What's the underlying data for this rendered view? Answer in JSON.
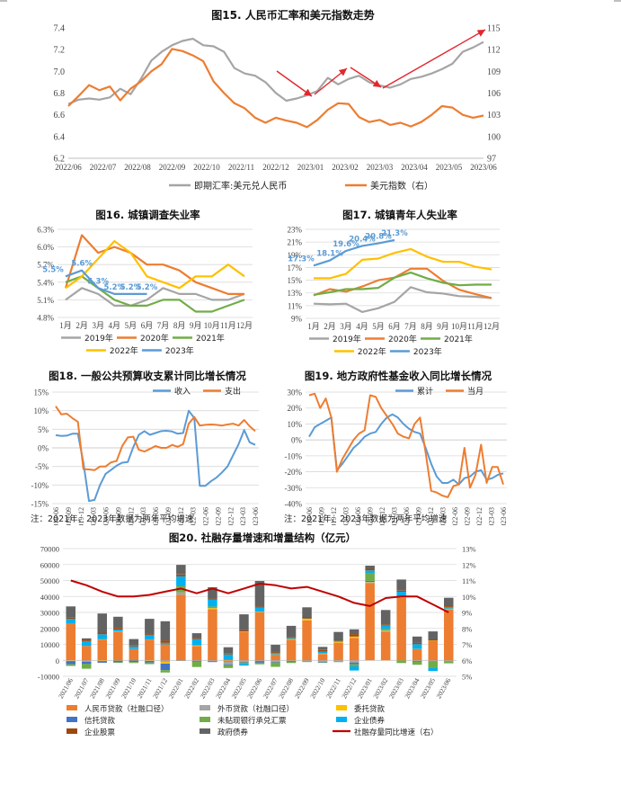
{
  "colors": {
    "orange": "#ED7D31",
    "gray": "#A5A5A5",
    "blue": "#5B9BD5",
    "yellow": "#FFC000",
    "green": "#70AD47",
    "darkred": "#C00000",
    "darkgray": "#595959",
    "red": "#E3262D",
    "grid": "#D9D9D9",
    "axis": "#BFBFBF",
    "foreign": "#A5A5A5",
    "trust": "#4472C4",
    "bill": "#70AD47",
    "bond": "#00B0F0",
    "equity": "#9E480E",
    "govt": "#636363"
  },
  "chart_data": [
    {
      "id": "fig15",
      "type": "line",
      "title": "图15. 人民币汇率和美元指数走势",
      "x_labels": [
        "2022/06",
        "2022/07",
        "2022/08",
        "2022/09",
        "2022/10",
        "2022/11",
        "2022/12",
        "2023/01",
        "2023/02",
        "2023/03",
        "2023/04",
        "2023/05",
        "2023/06"
      ],
      "y_left_ticks": [
        "6.2",
        "6.4",
        "6.6",
        "6.8",
        "7.0",
        "7.2",
        "7.4"
      ],
      "y_right_ticks": [
        "97",
        "100",
        "103",
        "106",
        "109",
        "112",
        "115"
      ],
      "ylim_left": [
        6.2,
        7.4
      ],
      "ylim_right": [
        97,
        115
      ],
      "series": [
        {
          "name": "即期汇率:美元兑人民币",
          "axis": "left",
          "color": "gray",
          "values": [
            6.7,
            6.74,
            6.75,
            6.74,
            6.76,
            6.84,
            6.79,
            6.93,
            7.1,
            7.18,
            7.24,
            7.28,
            7.3,
            7.24,
            7.23,
            7.18,
            7.03,
            6.98,
            6.96,
            6.9,
            6.8,
            6.73,
            6.75,
            6.78,
            6.82,
            6.94,
            6.88,
            6.93,
            6.96,
            6.9,
            6.87,
            6.85,
            6.88,
            6.93,
            6.95,
            6.98,
            7.02,
            7.07,
            7.18,
            7.22,
            7.27
          ]
        },
        {
          "name": "美元指数（右）",
          "axis": "right",
          "color": "orange",
          "values": [
            104.2,
            105.6,
            107.1,
            106.4,
            106.9,
            105.0,
            106.6,
            107.6,
            109.0,
            110.0,
            112.1,
            111.8,
            111.2,
            110.4,
            107.6,
            106.0,
            104.6,
            103.9,
            102.6,
            101.9,
            102.6,
            102.2,
            101.9,
            101.3,
            102.3,
            103.7,
            104.6,
            104.5,
            102.7,
            102.0,
            102.3,
            101.6,
            101.9,
            101.4,
            102.0,
            103.0,
            104.2,
            104.0,
            103.0,
            102.6,
            102.9
          ]
        }
      ],
      "arrows": 4
    },
    {
      "id": "fig16",
      "type": "line",
      "title": "图16. 城镇调查失业率",
      "x_labels": [
        "1月",
        "2月",
        "3月",
        "4月",
        "5月",
        "6月",
        "7月",
        "8月",
        "9月",
        "10月",
        "11月",
        "12月"
      ],
      "y_ticks": [
        "4.8%",
        "5.1%",
        "5.4%",
        "5.7%",
        "6.0%",
        "6.3%"
      ],
      "ylim": [
        4.8,
        6.3
      ],
      "series": [
        {
          "name": "2019年",
          "color": "gray",
          "values": [
            5.1,
            5.3,
            5.2,
            5.0,
            5.0,
            5.1,
            5.3,
            5.2,
            5.2,
            5.1,
            5.1,
            5.2
          ]
        },
        {
          "name": "2020年",
          "color": "orange",
          "values": [
            5.3,
            6.2,
            5.9,
            6.0,
            5.9,
            5.7,
            5.7,
            5.6,
            5.4,
            5.3,
            5.2,
            5.2
          ]
        },
        {
          "name": "2021年",
          "color": "green",
          "values": [
            5.4,
            5.5,
            5.3,
            5.1,
            5.0,
            5.0,
            5.1,
            5.1,
            4.9,
            4.9,
            5.0,
            5.1
          ]
        },
        {
          "name": "2022年",
          "color": "yellow",
          "values": [
            5.3,
            5.5,
            5.8,
            6.1,
            5.9,
            5.5,
            5.4,
            5.3,
            5.5,
            5.5,
            5.7,
            5.5
          ]
        },
        {
          "name": "2023年",
          "color": "blue",
          "values": [
            5.5,
            5.6,
            5.3,
            5.2,
            5.2,
            5.2
          ]
        }
      ],
      "data_labels": [
        "5.5%",
        "5.6%",
        "5.3%",
        "5.2%",
        "5.2%",
        "5.2%"
      ],
      "legend": [
        "2019年",
        "2020年",
        "2021年",
        "2022年",
        "2023年"
      ]
    },
    {
      "id": "fig17",
      "type": "line",
      "title": "图17. 城镇青年人失业率",
      "x_labels": [
        "1月",
        "2月",
        "3月",
        "4月",
        "5月",
        "6月",
        "7月",
        "8月",
        "9月",
        "10月",
        "11月",
        "12月"
      ],
      "y_ticks": [
        "9%",
        "11%",
        "13%",
        "15%",
        "17%",
        "19%",
        "21%",
        "23%"
      ],
      "ylim": [
        9,
        23
      ],
      "series": [
        {
          "name": "2019年",
          "color": "gray",
          "values": [
            11.3,
            11.2,
            11.3,
            10.0,
            10.6,
            11.6,
            13.9,
            13.1,
            12.9,
            12.5,
            12.4,
            12.2
          ]
        },
        {
          "name": "2020年",
          "color": "orange",
          "values": [
            12.6,
            13.6,
            13.2,
            14.0,
            15.0,
            15.4,
            16.8,
            16.8,
            14.9,
            13.5,
            12.8,
            12.2
          ]
        },
        {
          "name": "2021年",
          "color": "green",
          "values": [
            12.7,
            13.1,
            13.6,
            13.6,
            13.8,
            15.4,
            16.2,
            15.3,
            14.6,
            14.2,
            14.3,
            14.3
          ]
        },
        {
          "name": "2022年",
          "color": "yellow",
          "values": [
            15.3,
            15.3,
            16.0,
            18.2,
            18.4,
            19.3,
            19.9,
            18.7,
            17.9,
            17.9,
            17.1,
            16.7
          ]
        },
        {
          "name": "2023年",
          "color": "blue",
          "values": [
            17.3,
            18.1,
            19.6,
            20.4,
            20.8,
            21.3
          ]
        }
      ],
      "data_labels": [
        "17.3%",
        "18.1%",
        "19.6%",
        "20.4%",
        "20.8%",
        "21.3%"
      ],
      "legend": [
        "2019年",
        "2020年",
        "2021年",
        "2022年",
        "2023年"
      ]
    },
    {
      "id": "fig18",
      "type": "line",
      "title": "图18. 一般公共预算收支累计同比增长情况",
      "x_labels": [
        "2019-06",
        "2019-09",
        "2019-12",
        "2020-03",
        "2020-06",
        "2020-09",
        "2020-12",
        "2021-03",
        "2021-06",
        "2021-09",
        "2021-12",
        "2022-03",
        "2022-06",
        "2022-09",
        "2022-12",
        "2023-03",
        "2023-06"
      ],
      "y_ticks": [
        "-15%",
        "-10%",
        "-5%",
        "0%",
        "5%",
        "10%",
        "15%"
      ],
      "ylim": [
        -15,
        15
      ],
      "series": [
        {
          "name": "收入",
          "color": "blue",
          "values": [
            3.4,
            3.2,
            3.3,
            3.8,
            3.8,
            -4.0,
            -14.3,
            -14.0,
            -10.0,
            -7.0,
            -5.9,
            -4.8,
            -4.0,
            -3.8,
            0.2,
            3.5,
            4.5,
            3.5,
            4.0,
            4.5,
            4.6,
            4.4,
            3.8,
            4.0,
            10.0,
            8.0,
            -10.2,
            -10.2,
            -9.0,
            -8.0,
            -6.6,
            -5.0,
            -2.0,
            1.0,
            4.8,
            1.5,
            0.8
          ]
        },
        {
          "name": "支出",
          "color": "orange",
          "values": [
            11.2,
            9.0,
            9.2,
            8.0,
            7.0,
            -5.7,
            -5.8,
            -6.0,
            -5.0,
            -5.0,
            -3.9,
            -3.5,
            0.5,
            2.8,
            3.0,
            -0.5,
            -1.0,
            -0.3,
            0.5,
            0.0,
            0.0,
            0.8,
            0.3,
            1.0,
            6.5,
            8.3,
            6.0,
            6.2,
            6.3,
            6.2,
            6.0,
            6.3,
            6.5,
            6.0,
            7.5,
            5.8,
            4.5
          ]
        }
      ],
      "legend": [
        "收入",
        "支出"
      ],
      "note": "注：2021年、2023年数据为两年平均增速"
    },
    {
      "id": "fig19",
      "type": "line",
      "title": "图19. 地方政府性基金收入同比增长情况",
      "x_labels": [
        "2019-06",
        "2019-09",
        "2019-12",
        "2020-03",
        "2020-06",
        "2020-09",
        "2020-12",
        "2021-03",
        "2021-06",
        "2021-09",
        "2021-12",
        "2022-03",
        "2022-06",
        "2022-09",
        "2022-12",
        "2023-03",
        "2023-06"
      ],
      "y_ticks": [
        "-40%",
        "-30%",
        "-20%",
        "-10%",
        "0%",
        "10%",
        "20%",
        "30%"
      ],
      "ylim": [
        -40,
        30
      ],
      "series": [
        {
          "name": "累计",
          "color": "blue",
          "values": [
            2,
            8,
            10,
            12,
            14,
            -19,
            -15,
            -10,
            -5,
            -2,
            2,
            4,
            5,
            10,
            14,
            16,
            14,
            10,
            7,
            5,
            4,
            -5,
            -15,
            -23,
            -27,
            -27,
            -25,
            -28,
            -24,
            -23,
            -20,
            -19,
            -25,
            -24,
            -22,
            -21
          ]
        },
        {
          "name": "当月",
          "color": "orange",
          "values": [
            28,
            29,
            20,
            26,
            14,
            -20,
            -12,
            -6,
            0,
            4,
            6,
            28,
            27,
            20,
            15,
            10,
            4,
            2,
            1,
            10,
            14,
            -8,
            -32,
            -33,
            -35,
            -36,
            -29,
            -28,
            -5,
            -30,
            -22,
            -3,
            -27,
            -17,
            -17,
            -28
          ]
        }
      ],
      "legend": [
        "累计",
        "当月"
      ],
      "note": "注：2021年、2023年数据为两年平均增速"
    },
    {
      "id": "fig20",
      "type": "bar",
      "title": "图20. 社融存量增速和增量结构（亿元）",
      "categories": [
        "2021/06",
        "2021/07",
        "2021/08",
        "2021/09",
        "2021/10",
        "2021/11",
        "2021/12",
        "2022/01",
        "2022/02",
        "2022/03",
        "2022/04",
        "2022/05",
        "2022/06",
        "2022/07",
        "2022/08",
        "2022/09",
        "2022/10",
        "2022/11",
        "2022/12",
        "2023/01",
        "2023/02",
        "2023/03",
        "2023/04",
        "2023/05",
        "2023/06"
      ],
      "y_left_ticks": [
        "-10000",
        "0",
        "10000",
        "20000",
        "30000",
        "40000",
        "50000",
        "60000",
        "70000"
      ],
      "y_right_ticks": [
        "5%",
        "6%",
        "7%",
        "8%",
        "9%",
        "10%",
        "11%",
        "12%",
        "13%"
      ],
      "ylim_left": [
        -10000,
        70000
      ],
      "ylim_right": [
        5,
        13
      ],
      "series": [
        {
          "name": "人民币贷款（社融口径）",
          "color": "orange",
          "values": [
            23000,
            9000,
            13000,
            18000,
            7000,
            13000,
            10000,
            41000,
            9000,
            32000,
            -1000,
            18000,
            30000,
            3500,
            13000,
            25000,
            4000,
            11000,
            14000,
            48000,
            18000,
            39000,
            7000,
            12000,
            32000
          ]
        },
        {
          "name": "外币贷款（社融口径）",
          "color": "foreign",
          "values": [
            -300,
            -700,
            -200,
            300,
            200,
            -300,
            -1000,
            1600,
            -300,
            -600,
            -1500,
            -1000,
            -500,
            -1000,
            -400,
            -500,
            -1000,
            -800,
            -1500,
            1000,
            300,
            500,
            -400,
            -600,
            -700
          ]
        },
        {
          "name": "委托贷款",
          "color": "yellow",
          "values": [
            -200,
            -100,
            -300,
            -200,
            -100,
            -100,
            -1100,
            -100,
            300,
            700,
            200,
            200,
            400,
            200,
            400,
            1000,
            400,
            600,
            900,
            200,
            200,
            100,
            100,
            300,
            400
          ]
        },
        {
          "name": "信托贷款",
          "color": "trust",
          "values": [
            -2000,
            -1500,
            -1000,
            -1000,
            -1000,
            -1000,
            -4000,
            -200,
            -400,
            -500,
            -600,
            -300,
            -1000,
            -400,
            -300,
            -100,
            -300,
            -200,
            -1000,
            600,
            100,
            300,
            -300,
            -100,
            -200
          ]
        },
        {
          "name": "未贴现银行承兑汇票",
          "color": "bill",
          "values": [
            -1000,
            -3000,
            300,
            -400,
            -600,
            -1000,
            -1500,
            4000,
            -3500,
            1000,
            -1700,
            -1000,
            -1000,
            -2700,
            -1000,
            -500,
            -300,
            -100,
            -1300,
            5000,
            1200,
            -1700,
            -2100,
            -4000,
            -1000
          ]
        },
        {
          "name": "企业债券",
          "color": "bond",
          "values": [
            3000,
            3000,
            3000,
            1000,
            1500,
            3000,
            1000,
            6000,
            4000,
            4500,
            3500,
            -1000,
            2500,
            1000,
            600,
            200,
            1000,
            600,
            -2600,
            1500,
            2000,
            3000,
            3000,
            -2000,
            1000
          ]
        },
        {
          "name": "企业股票",
          "color": "equity",
          "values": [
            800,
            800,
            1000,
            1000,
            600,
            1000,
            1500,
            1200,
            700,
            600,
            500,
            600,
            800,
            1000,
            600,
            1000,
            1000,
            600,
            1500,
            1000,
            700,
            700,
            800,
            800,
            800
          ]
        },
        {
          "name": "政府债券",
          "color": "govt",
          "values": [
            7000,
            1000,
            12000,
            7000,
            4000,
            9000,
            12000,
            6000,
            3000,
            7000,
            4000,
            10000,
            16000,
            4000,
            7000,
            6000,
            2000,
            5000,
            3000,
            2000,
            9000,
            7000,
            4000,
            5000,
            5000
          ]
        }
      ],
      "line_series": {
        "name": "社融存量同比增速（右）",
        "color": "darkred",
        "values": [
          11.0,
          10.7,
          10.3,
          10.0,
          10.0,
          10.1,
          10.3,
          10.5,
          10.2,
          10.5,
          10.2,
          10.5,
          10.8,
          10.7,
          10.5,
          10.6,
          10.3,
          10.0,
          9.6,
          9.4,
          9.9,
          10.0,
          10.0,
          9.5,
          9.0
        ]
      },
      "legend": [
        "人民币贷款（社融口径）",
        "外币贷款（社融口径）",
        "委托贷款",
        "信托贷款",
        "未贴现银行承兑汇票",
        "企业债券",
        "企业股票",
        "政府债券",
        "社融存量同比增速（右）"
      ]
    }
  ]
}
